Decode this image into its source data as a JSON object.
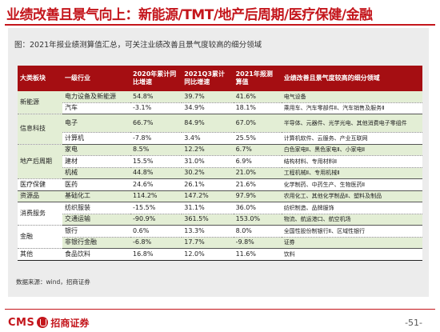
{
  "header": {
    "title": "业绩改善且景气向上：新能源/TMT/地产后周期/医疗保健/金融"
  },
  "figure": {
    "caption": "图：2021年报业绩测算值汇总，可关注业绩改善且景气度较高的细分领域"
  },
  "table": {
    "columns": [
      "大类板块",
      "一级行业",
      "2020年累计同比增速",
      "2021Q3累计同比增速",
      "2021年报测算值",
      "业绩改善且景气度较高的细分领域"
    ],
    "rows": [
      {
        "sector": "新能源",
        "industry": "电力设备及新能源",
        "y2020": "54.8%",
        "q3": "39.7%",
        "est": "41.6%",
        "focus": "电气设备"
      },
      {
        "sector": "",
        "industry": "汽车",
        "y2020": "-3.1%",
        "q3": "34.9%",
        "est": "18.1%",
        "focus": "乘用车、汽车零部件Ⅱ、汽车销售及服务Ⅱ"
      },
      {
        "sector": "信息科技",
        "industry": "电子",
        "y2020": "66.7%",
        "q3": "84.9%",
        "est": "67.0%",
        "focus": "半导体、元器件、光学光电、其他消费电子零组件"
      },
      {
        "sector": "",
        "industry": "计算机",
        "y2020": "-7.8%",
        "q3": "3.4%",
        "est": "25.5%",
        "focus": "计算机软件、云服务、产业互联网"
      },
      {
        "sector": "地产后周期",
        "industry": "家电",
        "y2020": "8.5%",
        "q3": "12.2%",
        "est": "6.7%",
        "focus": "白色家电Ⅱ、黑色家电Ⅱ、小家电Ⅱ"
      },
      {
        "sector": "",
        "industry": "建材",
        "y2020": "15.5%",
        "q3": "31.0%",
        "est": "6.9%",
        "focus": "结构材料、专用材料Ⅱ"
      },
      {
        "sector": "",
        "industry": "机械",
        "y2020": "44.8%",
        "q3": "30.2%",
        "est": "21.0%",
        "focus": "工程机械Ⅱ、专用机械Ⅱ"
      },
      {
        "sector": "医疗保健",
        "industry": "医药",
        "y2020": "24.6%",
        "q3": "26.1%",
        "est": "21.6%",
        "focus": "化学制药、中药生产、生物医药Ⅱ"
      },
      {
        "sector": "资源品",
        "industry": "基础化工",
        "y2020": "114.2%",
        "q3": "147.2%",
        "est": "97.9%",
        "focus": "农用化工、其他化学制品Ⅱ、塑料及制品"
      },
      {
        "sector": "消费服务",
        "industry": "纺织服装",
        "y2020": "-15.5%",
        "q3": "31.1%",
        "est": "36.0%",
        "focus": "纺织制造、品牌服饰"
      },
      {
        "sector": "",
        "industry": "交通运输",
        "y2020": "-90.9%",
        "q3": "361.5%",
        "est": "153.0%",
        "focus": "物流、航运港口、航空机场"
      },
      {
        "sector": "金融",
        "industry": "银行",
        "y2020": "0.6%",
        "q3": "13.3%",
        "est": "8.0%",
        "focus": "全国性股份制银行Ⅱ、区域性银行"
      },
      {
        "sector": "",
        "industry": "非银行金融",
        "y2020": "-6.8%",
        "q3": "17.7%",
        "est": "-9.8%",
        "focus": "证券"
      },
      {
        "sector": "其他",
        "industry": "食品饮料",
        "y2020": "16.8%",
        "q3": "12.0%",
        "est": "11.6%",
        "focus": "饮料"
      }
    ]
  },
  "source": "数据来源：wind，招商证券",
  "footer": {
    "logo_text": "CMS",
    "logo_icon": "cms-emblem-icon",
    "company": "招商证券",
    "page": "-51-"
  },
  "colors": {
    "brand_red": "#c4161c",
    "header_red": "#a50e12",
    "row_green": "#e3eed5",
    "panel_gray": "#ececec"
  }
}
